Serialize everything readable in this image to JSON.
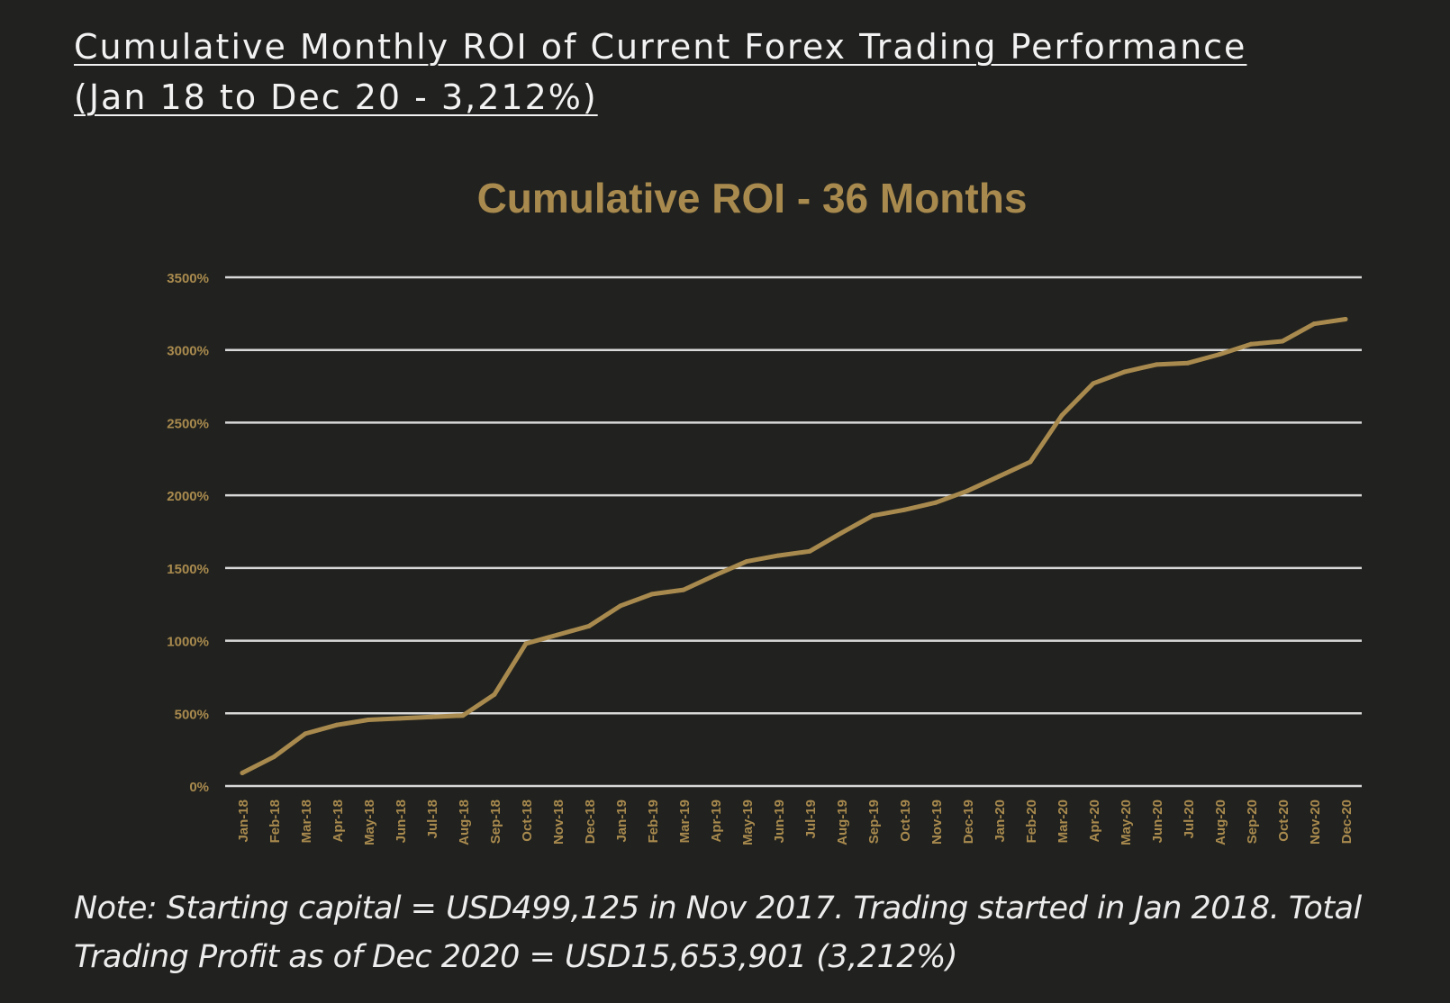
{
  "heading": {
    "line1": "Cumulative Monthly ROI of Current Forex Trading Performance",
    "line2": "(Jan 18 to Dec 20 - 3,212%)"
  },
  "note": {
    "line1": "Note: Starting capital = USD499,125 in Nov 2017. Trading started in Jan 2018. Total",
    "line2": "Trading Profit as of Dec 2020 = USD15,653,901 (3,212%)"
  },
  "colors": {
    "background": "#21221f",
    "line": "#a98a4e",
    "title": "#a98a4e",
    "grid": "#d9d9d9"
  },
  "chart_data": {
    "type": "line",
    "title": "Cumulative ROI - 36 Months",
    "xlabel": "",
    "ylabel": "",
    "ylim": [
      0,
      3500
    ],
    "yticks": [
      0,
      500,
      1000,
      1500,
      2000,
      2500,
      3000,
      3500
    ],
    "ytick_labels": [
      "0%",
      "500%",
      "1000%",
      "1500%",
      "2000%",
      "2500%",
      "3000%",
      "3500%"
    ],
    "grid": true,
    "categories": [
      "Jan-18",
      "Feb-18",
      "Mar-18",
      "Apr-18",
      "May-18",
      "Jun-18",
      "Jul-18",
      "Aug-18",
      "Sep-18",
      "Oct-18",
      "Nov-18",
      "Dec-18",
      "Jan-19",
      "Feb-19",
      "Mar-19",
      "Apr-19",
      "May-19",
      "Jun-19",
      "Jul-19",
      "Aug-19",
      "Sep-19",
      "Oct-19",
      "Nov-19",
      "Dec-19",
      "Jan-20",
      "Feb-20",
      "Mar-20",
      "Apr-20",
      "May-20",
      "Jun-20",
      "Jul-20",
      "Aug-20",
      "Sep-20",
      "Oct-20",
      "Nov-20",
      "Dec-20"
    ],
    "values": [
      90,
      200,
      360,
      420,
      455,
      465,
      475,
      485,
      630,
      980,
      1040,
      1100,
      1240,
      1320,
      1350,
      1450,
      1545,
      1585,
      1615,
      1740,
      1860,
      1900,
      1950,
      2030,
      2130,
      2230,
      2550,
      2770,
      2850,
      2900,
      2910,
      2970,
      3040,
      3060,
      3180,
      3212
    ]
  }
}
